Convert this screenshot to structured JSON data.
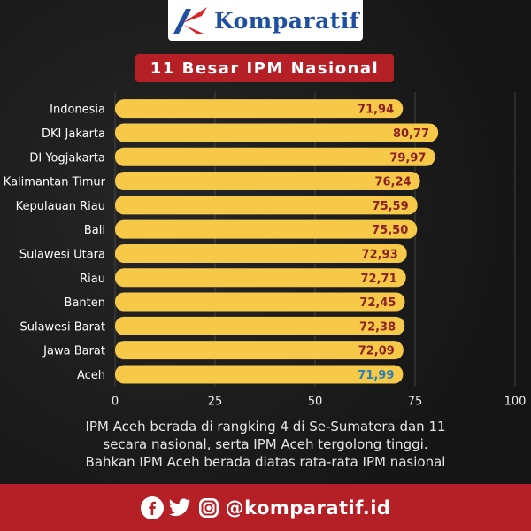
{
  "header": {
    "logo_text": "Komparatif",
    "title": "11 Besar IPM Nasional"
  },
  "chart_data": {
    "type": "bar",
    "orientation": "horizontal",
    "categories": [
      "Indonesia",
      "DKI Jakarta",
      "DI Yogjakarta",
      "Kalimantan Timur",
      "Kepulauan Riau",
      "Bali",
      "Sulawesi Utara",
      "Riau",
      "Banten",
      "Sulawesi Barat",
      "Jawa Barat",
      "Aceh"
    ],
    "values": [
      71.94,
      80.77,
      79.97,
      76.24,
      75.59,
      75.5,
      72.93,
      72.71,
      72.45,
      72.38,
      72.09,
      71.99
    ],
    "value_labels": [
      "71,94",
      "80,77",
      "79,97",
      "76,24",
      "75,59",
      "75,50",
      "72,93",
      "72,71",
      "72,45",
      "72,38",
      "72,09",
      "71,99"
    ],
    "xlim": [
      0,
      100
    ],
    "xticks": [
      "0",
      "25",
      "50",
      "75",
      "100"
    ],
    "grid": true,
    "legend": "none",
    "bar_color": "#f7c948",
    "label_color": "#8b2222",
    "highlight_label_color": "#2d7fb3",
    "highlight_index": 11
  },
  "caption": {
    "lines": [
      "IPM Aceh berada di rangking 4 di Se-Sumatera dan 11",
      "secara nasional, serta IPM Aceh tergolong tinggi.",
      "Bahkan IPM Aceh berada diatas rata-rata IPM nasional"
    ]
  },
  "footer": {
    "icons": [
      "facebook-icon",
      "twitter-icon",
      "instagram-icon"
    ],
    "handle": "@komparatif.id"
  }
}
